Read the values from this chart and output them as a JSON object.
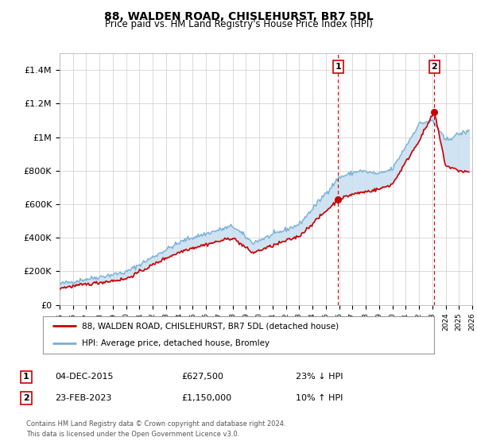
{
  "title": "88, WALDEN ROAD, CHISLEHURST, BR7 5DL",
  "subtitle": "Price paid vs. HM Land Registry's House Price Index (HPI)",
  "legend_entry1": "88, WALDEN ROAD, CHISLEHURST, BR7 5DL (detached house)",
  "legend_entry2": "HPI: Average price, detached house, Bromley",
  "annotation1_label": "1",
  "annotation1_date": "04-DEC-2015",
  "annotation1_price": "£627,500",
  "annotation1_hpi": "23% ↓ HPI",
  "annotation1_year": 2015.92,
  "annotation1_value": 627500,
  "annotation2_label": "2",
  "annotation2_date": "23-FEB-2023",
  "annotation2_price": "£1,150,000",
  "annotation2_hpi": "10% ↑ HPI",
  "annotation2_year": 2023.15,
  "annotation2_value": 1150000,
  "footer1": "Contains HM Land Registry data © Crown copyright and database right 2024.",
  "footer2": "This data is licensed under the Open Government Licence v3.0.",
  "xmin": 1995,
  "xmax": 2026,
  "ymin": 0,
  "ymax": 1500000,
  "yticks": [
    0,
    200000,
    400000,
    600000,
    800000,
    1000000,
    1200000,
    1400000
  ],
  "ytick_labels": [
    "£0",
    "£200K",
    "£400K",
    "£600K",
    "£800K",
    "£1M",
    "£1.2M",
    "£1.4M"
  ],
  "line1_color": "#cc0000",
  "line2_color": "#7ab0d4",
  "fill_color": "#c8dff0",
  "vline_color": "#cc0000",
  "annotation_box_color": "#cc0000",
  "background_color": "#ffffff",
  "grid_color": "#cccccc"
}
